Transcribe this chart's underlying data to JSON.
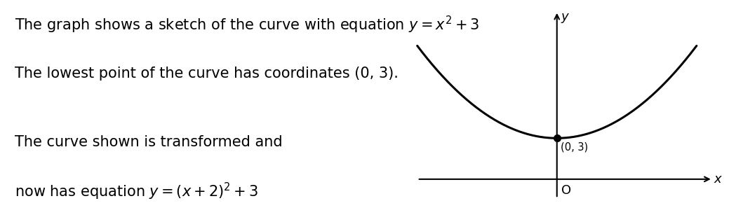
{
  "text_line1": "The graph shows a sketch of the curve with equation $y = x^2 + 3$",
  "text_line2": "The lowest point of the curve has coordinates (0, 3).",
  "text_line3": "The curve shown is transformed and",
  "text_line4": "now has equation $y = (x + 2)^2 + 3$",
  "curve_color": "#000000",
  "axis_color": "#000000",
  "background_color": "#ffffff",
  "font_size_main": 15,
  "font_size_label": 13,
  "dot_color": "#000000",
  "dot_size": 7,
  "vertex_x": 0,
  "vertex_y": 3,
  "x_range": [
    -2.5,
    2.5
  ],
  "y_range": [
    -1.5,
    12.5
  ],
  "origin_label": "O",
  "x_label": "x",
  "y_label": "y"
}
